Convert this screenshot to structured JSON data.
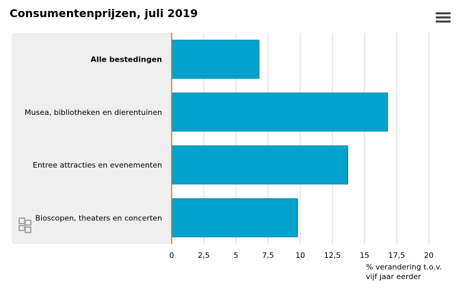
{
  "chart_data": {
    "type": "bar",
    "orientation": "horizontal",
    "title": "Consumentenprijzen, juli 2019",
    "categories": [
      "Alle bestedingen",
      "Musea, bibliotheken en dierentuinen",
      "Entree attracties en evenementen",
      "Bioscopen, theaters en concerten"
    ],
    "highlighted_category": "Alle bestedingen",
    "values": [
      6.8,
      16.8,
      13.7,
      9.8
    ],
    "xlabel": [
      "% verandering t.o.v.",
      "vijf jaar eerder"
    ],
    "ylabel": "",
    "xlim": [
      0,
      20
    ],
    "xticks": [
      0,
      2.5,
      5,
      7.5,
      10,
      12.5,
      15,
      17.5,
      20
    ],
    "xtick_labels": [
      "0",
      "2,5",
      "5",
      "7,5",
      "10",
      "12,5",
      "15",
      "17,5",
      "20"
    ],
    "grid": true,
    "legend": "none",
    "colors": {
      "bar": "#00a1cd",
      "bar_border": "#0086ad",
      "label_panel": "#efefef",
      "zero_line": "#e36c0a",
      "grid": "#d3d3d3"
    }
  },
  "menu_icon": "hamburger-menu-icon",
  "logo_icon": "cbs-logo-icon"
}
